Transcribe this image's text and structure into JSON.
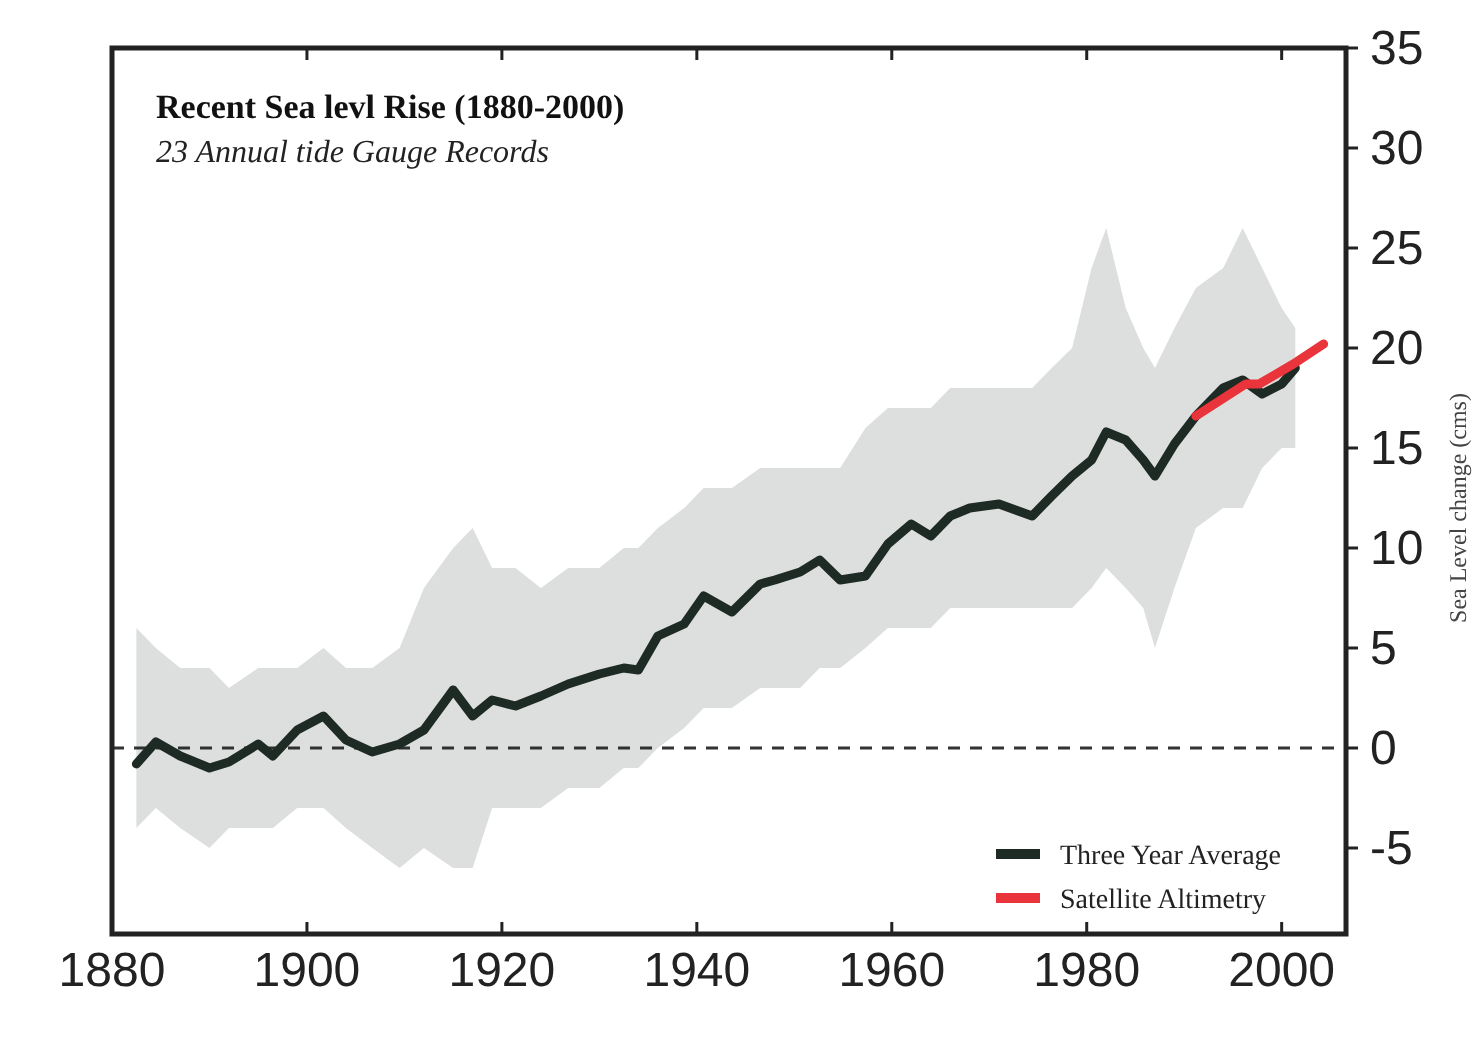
{
  "chart_data": {
    "type": "line",
    "title": "Recent Sea levl Rise (1880-2000)",
    "subtitle": "23 Annual tide Gauge Records",
    "ylabel": "Sea Level change (cms)",
    "xlim": [
      1880,
      2006.6
    ],
    "xticks": [
      1880,
      1900,
      1920,
      1940,
      1960,
      1980,
      2000
    ],
    "ylim": [
      -9.3,
      35
    ],
    "yticks": [
      -5,
      0,
      5,
      10,
      15,
      20,
      25,
      30,
      35
    ],
    "legend": "bottom right",
    "grid": false,
    "marker": "none",
    "line_style": "solid",
    "ref_lines": [
      {
        "axis": "y",
        "value": 0,
        "line_style": "dashed",
        "color": "#333333"
      }
    ],
    "series": [
      {
        "name": "Three Year Average",
        "color": "#1e2a24",
        "x": [
          1882.5,
          1884.5,
          1887,
          1890,
          1892,
          1895,
          1896.5,
          1899,
          1901.7,
          1904,
          1906.7,
          1909.5,
          1912,
          1915,
          1917,
          1919,
          1921.4,
          1924,
          1926.8,
          1930,
          1932.5,
          1934,
          1936,
          1938.7,
          1940.7,
          1943.6,
          1946.5,
          1948,
          1950.6,
          1952.6,
          1954.7,
          1957.3,
          1959.6,
          1962,
          1964,
          1966,
          1968,
          1971,
          1972.7,
          1974.4,
          1976.4,
          1978.5,
          1980.5,
          1982,
          1984,
          1985.8,
          1987,
          1989,
          1991.2,
          1994,
          1996,
          1998,
          2000,
          2001.4
        ],
        "values": [
          -0.8,
          0.3,
          -0.4,
          -1,
          -0.7,
          0.2,
          -0.4,
          0.9,
          1.6,
          0.4,
          -0.2,
          0.2,
          0.9,
          2.9,
          1.6,
          2.4,
          2.1,
          2.6,
          3.2,
          3.7,
          4,
          3.9,
          5.6,
          6.2,
          7.6,
          6.8,
          8.2,
          8.4,
          8.8,
          9.4,
          8.4,
          8.6,
          10.2,
          11.2,
          10.6,
          11.6,
          12,
          12.2,
          11.9,
          11.6,
          12.6,
          13.6,
          14.4,
          15.8,
          15.4,
          14.4,
          13.6,
          15.2,
          16.6,
          18,
          18.4,
          17.7,
          18.2,
          19
        ],
        "lower": [
          -4,
          -3,
          -4,
          -5,
          -4,
          -4,
          -4,
          -3,
          -3,
          -4,
          -5,
          -6,
          -5,
          -6,
          -6,
          -3,
          -3,
          -3,
          -2,
          -2,
          -1,
          -1,
          0,
          1,
          2,
          2,
          3,
          3,
          3,
          4,
          4,
          5,
          6,
          6,
          6,
          7,
          7,
          7,
          7,
          7,
          7,
          7,
          8,
          9,
          8,
          7,
          5,
          8,
          11,
          12,
          12,
          14,
          15,
          15
        ],
        "upper": [
          6,
          5,
          4,
          4,
          3,
          4,
          4,
          4,
          5,
          4,
          4,
          5,
          8,
          10,
          11,
          9,
          9,
          8,
          9,
          9,
          10,
          10,
          11,
          12,
          13,
          13,
          14,
          14,
          14,
          14,
          14,
          16,
          17,
          17,
          17,
          18,
          18,
          18,
          18,
          18,
          19,
          20,
          24,
          26,
          22,
          20,
          19,
          21,
          23,
          24,
          26,
          24,
          22,
          21
        ]
      },
      {
        "name": "Satellite Altimetry",
        "color": "#e8343a",
        "x": [
          1991.2,
          1996.3,
          1997.7,
          2001.2,
          2004.3
        ],
        "values": [
          16.6,
          18.2,
          18.2,
          19.2,
          20.2
        ]
      }
    ]
  }
}
